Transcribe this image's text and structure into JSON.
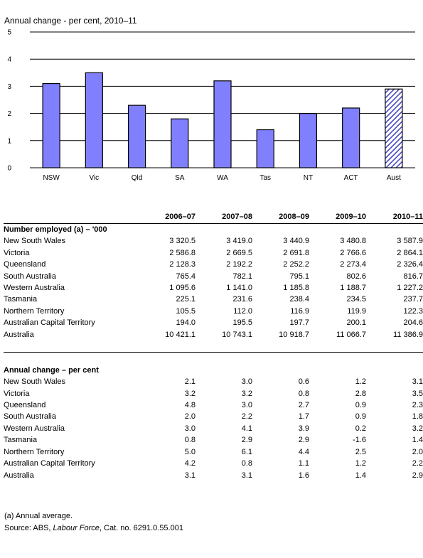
{
  "chart_data": {
    "type": "bar",
    "title": "Annual change - per cent, 2010–11",
    "categories": [
      "NSW",
      "Vic",
      "Qld",
      "SA",
      "WA",
      "Tas",
      "NT",
      "ACT",
      "Aust"
    ],
    "values": [
      3.1,
      3.5,
      2.3,
      1.8,
      3.2,
      1.4,
      2.0,
      2.2,
      2.9
    ],
    "hatched": [
      false,
      false,
      false,
      false,
      false,
      false,
      false,
      false,
      true
    ],
    "ylim": [
      0,
      5
    ],
    "yticks": [
      0,
      1,
      2,
      3,
      4,
      5
    ],
    "grid": true,
    "colors": {
      "bar_fill": "#8080ff",
      "bar_stroke": "#000000",
      "hatch": "#4040c0",
      "grid": "#000000"
    }
  },
  "table": {
    "headers": [
      "",
      "2006–07",
      "2007–08",
      "2008–09",
      "2009–10",
      "2010–11"
    ],
    "sections": [
      {
        "title": "Number employed (a) – '000",
        "rows": [
          {
            "label": "New South Wales",
            "values": [
              "3 320.5",
              "3 419.0",
              "3 440.9",
              "3 480.8",
              "3 587.9"
            ]
          },
          {
            "label": "Victoria",
            "values": [
              "2 586.8",
              "2 669.5",
              "2 691.8",
              "2 766.6",
              "2 864.1"
            ]
          },
          {
            "label": "Queensland",
            "values": [
              "2 128.3",
              "2 192.2",
              "2 252.2",
              "2 273.4",
              "2 326.4"
            ]
          },
          {
            "label": "South Australia",
            "values": [
              "765.4",
              "782.1",
              "795.1",
              "802.6",
              "816.7"
            ]
          },
          {
            "label": "Western Australia",
            "values": [
              "1 095.6",
              "1 141.0",
              "1 185.8",
              "1 188.7",
              "1 227.2"
            ]
          },
          {
            "label": "Tasmania",
            "values": [
              "225.1",
              "231.6",
              "238.4",
              "234.5",
              "237.7"
            ]
          },
          {
            "label": "Northern Territory",
            "values": [
              "105.5",
              "112.0",
              "116.9",
              "119.9",
              "122.3"
            ]
          },
          {
            "label": "Australian Capital Territory",
            "values": [
              "194.0",
              "195.5",
              "197.7",
              "200.1",
              "204.6"
            ]
          },
          {
            "label": "Australia",
            "values": [
              "10 421.1",
              "10 743.1",
              "10 918.7",
              "11 066.7",
              "11 386.9"
            ]
          }
        ]
      },
      {
        "title": "Annual change – per cent",
        "rows": [
          {
            "label": "New South Wales",
            "values": [
              "2.1",
              "3.0",
              "0.6",
              "1.2",
              "3.1"
            ]
          },
          {
            "label": "Victoria",
            "values": [
              "3.2",
              "3.2",
              "0.8",
              "2.8",
              "3.5"
            ]
          },
          {
            "label": "Queensland",
            "values": [
              "4.8",
              "3.0",
              "2.7",
              "0.9",
              "2.3"
            ]
          },
          {
            "label": "South Australia",
            "values": [
              "2.0",
              "2.2",
              "1.7",
              "0.9",
              "1.8"
            ]
          },
          {
            "label": "Western Australia",
            "values": [
              "3.0",
              "4.1",
              "3.9",
              "0.2",
              "3.2"
            ]
          },
          {
            "label": "Tasmania",
            "values": [
              "0.8",
              "2.9",
              "2.9",
              "-1.6",
              "1.4"
            ]
          },
          {
            "label": "Northern Territory",
            "values": [
              "5.0",
              "6.1",
              "4.4",
              "2.5",
              "2.0"
            ]
          },
          {
            "label": "Australian Capital Territory",
            "values": [
              "4.2",
              "0.8",
              "1.1",
              "1.2",
              "2.2"
            ]
          },
          {
            "label": "Australia",
            "values": [
              "3.1",
              "3.1",
              "1.6",
              "1.4",
              "2.9"
            ]
          }
        ]
      }
    ]
  },
  "footnote": {
    "note": "(a) Annual average.",
    "source_prefix": "Source: ABS, ",
    "source_title": "Labour Force",
    "source_suffix": ", Cat. no. 6291.0.55.001"
  }
}
